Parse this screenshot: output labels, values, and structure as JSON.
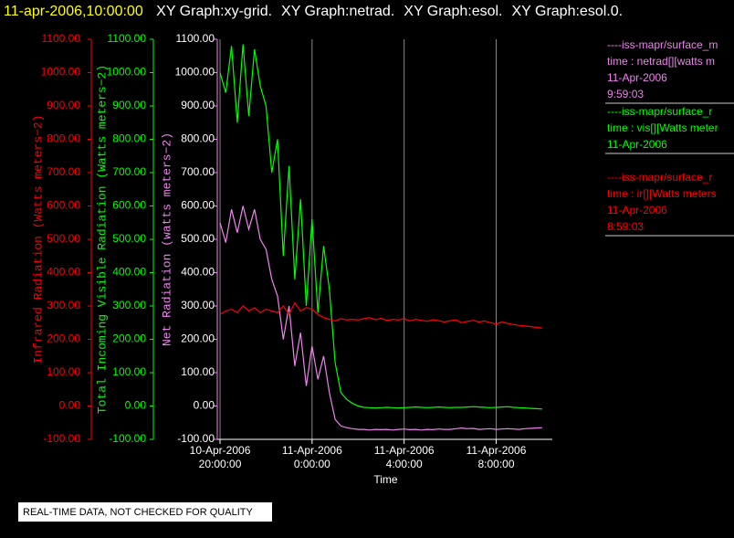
{
  "chart_data": {
    "type": "line",
    "title": "11-apr-2006,10:00:00",
    "header_items": [
      "XY Graph:xy-grid.",
      "XY Graph:netrad.",
      "XY Graph:esol.",
      "XY Graph:esol.0."
    ],
    "xlabel": "Time",
    "xlim": [
      19.88,
      34.44
    ],
    "xticks": [
      {
        "value": 20,
        "label": "10-Apr-2006\n20:00:00"
      },
      {
        "value": 24,
        "label": "11-Apr-2006\n0:00:00"
      },
      {
        "value": 28,
        "label": "11-Apr-2006\n4:00:00"
      },
      {
        "value": 32,
        "label": "11-Apr-2006\n8:00:00"
      }
    ],
    "grid_x": true,
    "y_axes": [
      {
        "title": "Infrared Radiation (Watts meters−2)",
        "color": "#ff0000",
        "tick_color": "#ff0000",
        "ylim": [
          -100,
          1100
        ],
        "yticks": [
          {
            "value": -100,
            "label": "-100.00"
          },
          {
            "value": 0,
            "label": "0.00"
          },
          {
            "value": 100,
            "label": "100.00"
          },
          {
            "value": 200,
            "label": "200.00"
          },
          {
            "value": 300,
            "label": "300.00"
          },
          {
            "value": 400,
            "label": "400.00"
          },
          {
            "value": 500,
            "label": "500.00"
          },
          {
            "value": 600,
            "label": "600.00"
          },
          {
            "value": 700,
            "label": "700.00"
          },
          {
            "value": 800,
            "label": "800.00"
          },
          {
            "value": 900,
            "label": "900.00"
          },
          {
            "value": 1000,
            "label": "1000.00"
          },
          {
            "value": 1100,
            "label": "1100.00"
          }
        ]
      },
      {
        "title": "Total Incoming Visible Radiation (Watts meters−2)",
        "color": "#00ff00",
        "tick_color": "#00ff00",
        "ylim": [
          -100,
          1100
        ],
        "yticks": [
          {
            "value": -100,
            "label": "-100.00"
          },
          {
            "value": 0,
            "label": "0.00"
          },
          {
            "value": 100,
            "label": "100.00"
          },
          {
            "value": 200,
            "label": "200.00"
          },
          {
            "value": 300,
            "label": "300.00"
          },
          {
            "value": 400,
            "label": "400.00"
          },
          {
            "value": 500,
            "label": "500.00"
          },
          {
            "value": 600,
            "label": "600.00"
          },
          {
            "value": 700,
            "label": "700.00"
          },
          {
            "value": 800,
            "label": "800.00"
          },
          {
            "value": 900,
            "label": "900.00"
          },
          {
            "value": 1000,
            "label": "1000.00"
          },
          {
            "value": 1100,
            "label": "1100.00"
          }
        ]
      },
      {
        "title": "Net Radiation (watts meters−2)",
        "color": "#ee82ee",
        "tick_color": "#ffffff",
        "ylim": [
          -100,
          1100
        ],
        "yticks": [
          {
            "value": -100,
            "label": "-100.00"
          },
          {
            "value": 0,
            "label": "0.00"
          },
          {
            "value": 100,
            "label": "100.00"
          },
          {
            "value": 200,
            "label": "200.00"
          },
          {
            "value": 300,
            "label": "300.00"
          },
          {
            "value": 400,
            "label": "400.00"
          },
          {
            "value": 500,
            "label": "500.00"
          },
          {
            "value": 600,
            "label": "600.00"
          },
          {
            "value": 700,
            "label": "700.00"
          },
          {
            "value": 800,
            "label": "800.00"
          },
          {
            "value": 900,
            "label": "900.00"
          },
          {
            "value": 1000,
            "label": "1000.00"
          },
          {
            "value": 1100,
            "label": "1100.00"
          }
        ]
      }
    ],
    "x": [
      20,
      20.25,
      20.5,
      20.75,
      21,
      21.25,
      21.5,
      21.75,
      22,
      22.25,
      22.5,
      22.75,
      23,
      23.25,
      23.5,
      23.75,
      24,
      24.25,
      24.5,
      24.75,
      25,
      25.25,
      25.5,
      25.75,
      26,
      26.25,
      26.5,
      26.75,
      27,
      27.25,
      27.5,
      27.75,
      28,
      28.25,
      28.5,
      28.75,
      29,
      29.25,
      29.5,
      29.75,
      30,
      30.25,
      30.5,
      30.75,
      31,
      31.25,
      31.5,
      31.75,
      32,
      32.25,
      32.5,
      32.75,
      33,
      33.25,
      33.5,
      33.75,
      34
    ],
    "series": [
      {
        "name": "----iss-mapr/surface_m",
        "details": [
          "time : netrad[][watts m",
          "11-Apr-2006",
          "9:59:03"
        ],
        "color": "#ee82ee",
        "axis": 2,
        "values": [
          550,
          490,
          590,
          520,
          600,
          530,
          590,
          500,
          470,
          380,
          330,
          200,
          300,
          120,
          220,
          60,
          180,
          80,
          150,
          40,
          -40,
          -60,
          -65,
          -68,
          -70,
          -70,
          -72,
          -70,
          -71,
          -70,
          -72,
          -70,
          -69,
          -71,
          -70,
          -72,
          -70,
          -71,
          -69,
          -70,
          -70,
          -68,
          -66,
          -68,
          -67,
          -70,
          -69,
          -68,
          -70,
          -69,
          -68,
          -69,
          -70,
          -68,
          -67,
          -66,
          -65
        ]
      },
      {
        "name": "----iss-mapr/surface_r",
        "details": [
          "time : vis[][Watts meter",
          "11-Apr-2006"
        ],
        "color": "#00ff00",
        "axis": 1,
        "values": [
          1000,
          940,
          1080,
          850,
          1085,
          870,
          1070,
          960,
          900,
          700,
          800,
          450,
          720,
          380,
          620,
          300,
          560,
          280,
          480,
          350,
          130,
          40,
          20,
          8,
          0,
          -4,
          -5,
          -6,
          -5,
          -4,
          -5,
          -6,
          -5,
          -4,
          -3,
          -4,
          -5,
          -4,
          -3,
          -4,
          -5,
          -4,
          -4,
          -3,
          -2,
          -3,
          -4,
          -5,
          -4,
          -3,
          -2,
          -4,
          -5,
          -6,
          -7,
          -8,
          -9
        ]
      },
      {
        "name": "----iss-mapr/surface_r",
        "details": [
          "time : ir[][Watts meters",
          "11-Apr-2006",
          "8:59:03"
        ],
        "color": "#ff0000",
        "axis": 0,
        "values": [
          275,
          285,
          290,
          280,
          300,
          285,
          295,
          280,
          290,
          285,
          280,
          300,
          275,
          310,
          285,
          295,
          290,
          275,
          265,
          260,
          255,
          262,
          258,
          260,
          258,
          262,
          265,
          259,
          263,
          257,
          260,
          258,
          262,
          255,
          260,
          257,
          254,
          259,
          256,
          252,
          256,
          258,
          250,
          254,
          257,
          252,
          255,
          250,
          246,
          252,
          248,
          244,
          242,
          240,
          238,
          236,
          234
        ]
      }
    ],
    "footer_note": "REAL-TIME DATA, NOT CHECKED FOR QUALITY"
  }
}
